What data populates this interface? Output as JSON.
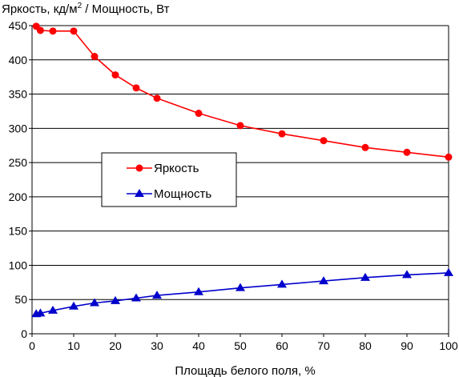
{
  "chart_data": {
    "type": "line",
    "title": "",
    "ylabel": "Яркость, кд/м2 / Мощность, Вт",
    "ylabel_parts": {
      "before": "Яркость, кд/м",
      "sup": "2",
      "after": " / Мощность, Вт"
    },
    "xlabel": "Площадь белого поля, %",
    "xlim": [
      0,
      100
    ],
    "ylim": [
      0,
      450
    ],
    "xticks": [
      0,
      10,
      20,
      30,
      40,
      50,
      60,
      70,
      80,
      90,
      100
    ],
    "yticks": [
      0,
      50,
      100,
      150,
      200,
      250,
      300,
      350,
      400,
      450
    ],
    "grid": "horizontal",
    "legend_placement": "center-left",
    "series": [
      {
        "name": "Яркость",
        "color": "#ff0000",
        "marker": "circle",
        "x": [
          1,
          2,
          5,
          10,
          15,
          20,
          25,
          30,
          40,
          50,
          60,
          70,
          80,
          90,
          100
        ],
        "y": [
          449,
          443,
          442,
          442,
          405,
          378,
          359,
          344,
          322,
          304,
          292,
          282,
          272,
          265,
          258
        ]
      },
      {
        "name": "Мощность",
        "color": "#0000cc",
        "marker": "triangle",
        "x": [
          1,
          2,
          5,
          10,
          15,
          20,
          25,
          30,
          40,
          50,
          60,
          70,
          80,
          90,
          100
        ],
        "y": [
          29,
          30,
          34,
          40,
          45,
          48,
          52,
          56,
          61,
          67,
          72,
          77,
          82,
          86,
          89
        ]
      }
    ]
  }
}
